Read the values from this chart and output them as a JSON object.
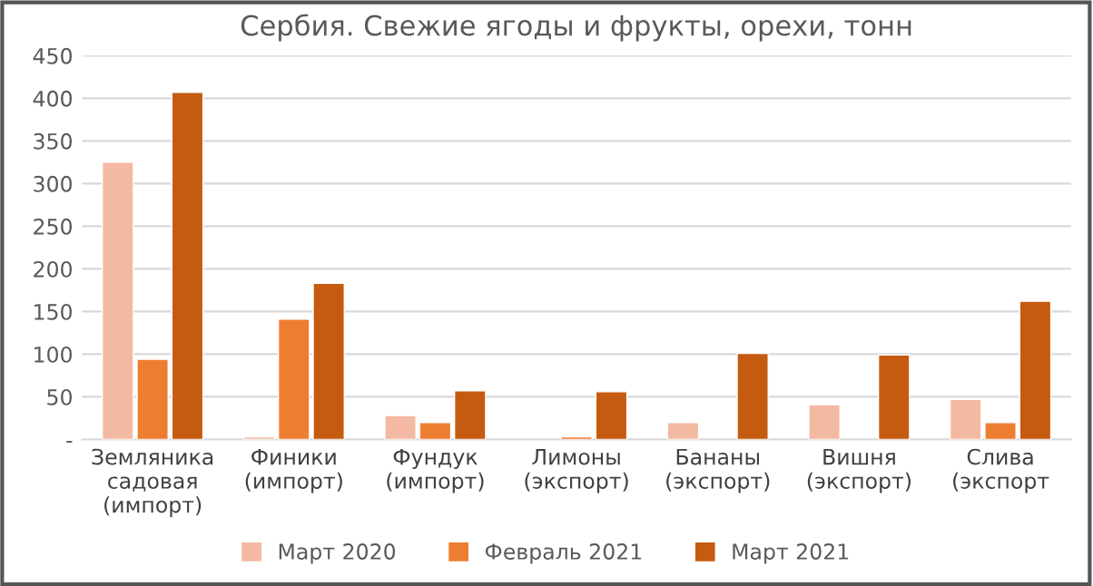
{
  "chart_data": {
    "type": "bar",
    "title": "Сербия. Свежие ягоды и фрукты, орехи, тонн",
    "categories": [
      "Земляника\nсадовая\n(импорт)",
      "Финики\n(импорт)",
      "Фундук\n(импорт)",
      "Лимоны\n(экспорт)",
      "Бананы\n(экспорт)",
      "Вишня\n(экспорт)",
      "Слива\n(экспорт"
    ],
    "series": [
      {
        "name": "Март 2020",
        "color": "#f4b9a2",
        "values": [
          325,
          3,
          28,
          null,
          20,
          41,
          47
        ]
      },
      {
        "name": "Февраль 2021",
        "color": "#ed7d31",
        "values": [
          94,
          141,
          20,
          3,
          null,
          null,
          20
        ]
      },
      {
        "name": "Март 2021",
        "color": "#c55a11",
        "values": [
          407,
          183,
          57,
          56,
          101,
          99,
          162
        ]
      }
    ],
    "ylim": [
      0,
      450
    ],
    "yticks": [
      {
        "value": 0,
        "label": "-"
      },
      50,
      100,
      150,
      200,
      250,
      300,
      350,
      400,
      450
    ],
    "grid": "y",
    "legend": "bottom"
  }
}
